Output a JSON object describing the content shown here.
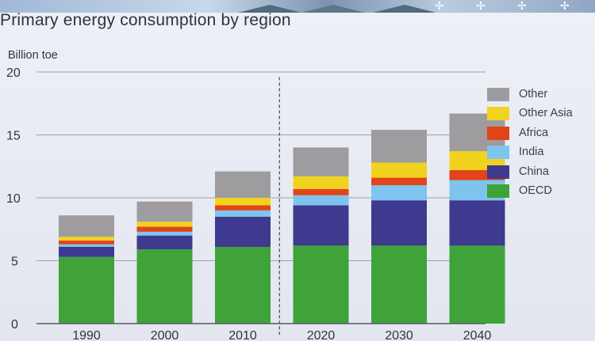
{
  "page": {
    "title": "Primary energy consumption by region"
  },
  "colors": {
    "Other": "#9e9c9e",
    "Other Asia": "#f1d31f",
    "Africa": "#e2441a",
    "India": "#7ec4ee",
    "China": "#3d3a8f",
    "OECD": "#3fa33a",
    "gridline": "#9aa0aa",
    "axis": "#555c66"
  },
  "chart_data": {
    "type": "bar",
    "stacked": true,
    "title": "Primary energy consumption by region",
    "ylabel": "Billion toe",
    "xlabel": "",
    "ylim": [
      0,
      20
    ],
    "yticks": [
      0,
      5,
      10,
      15,
      20
    ],
    "categories": [
      "1990",
      "2000",
      "2010",
      "2020",
      "2030",
      "2040"
    ],
    "projection_divider_after": "2010",
    "legend_position": "right",
    "series": [
      {
        "name": "OECD",
        "values": [
          5.3,
          5.9,
          6.1,
          6.2,
          6.2,
          6.2
        ]
      },
      {
        "name": "China",
        "values": [
          0.8,
          1.1,
          2.4,
          3.2,
          3.6,
          3.6
        ]
      },
      {
        "name": "India",
        "values": [
          0.2,
          0.3,
          0.5,
          0.8,
          1.2,
          1.6
        ]
      },
      {
        "name": "Africa",
        "values": [
          0.3,
          0.4,
          0.4,
          0.5,
          0.6,
          0.8
        ]
      },
      {
        "name": "Other Asia",
        "values": [
          0.3,
          0.4,
          0.6,
          1.0,
          1.2,
          1.5
        ]
      },
      {
        "name": "Other",
        "values": [
          1.7,
          1.6,
          2.1,
          2.3,
          2.6,
          3.0
        ]
      }
    ]
  },
  "legend": {
    "items": [
      {
        "key": "Other",
        "label": "Other"
      },
      {
        "key": "Other Asia",
        "label": "Other Asia"
      },
      {
        "key": "Africa",
        "label": "Africa"
      },
      {
        "key": "India",
        "label": "India"
      },
      {
        "key": "China",
        "label": "China"
      },
      {
        "key": "OECD",
        "label": "OECD"
      }
    ]
  }
}
